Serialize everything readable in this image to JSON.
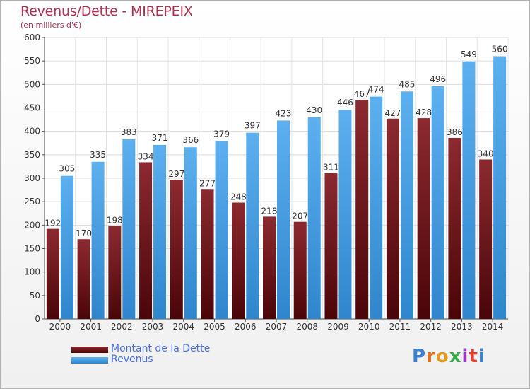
{
  "header": {
    "title": "Revenus/Dette - MIREPEIX",
    "subtitle": "(en milliers d'€)"
  },
  "colors": {
    "debt": "#6e1318",
    "revenue": "#4aa3e8",
    "title": "#b03050",
    "legend_text": "#4a6fe0"
  },
  "legend": {
    "items": [
      {
        "label": "Montant de la Dette",
        "color": "#6e1318"
      },
      {
        "label": "Revenus",
        "color": "#4aa3e8"
      }
    ]
  },
  "brand": {
    "letters": [
      "P",
      "r",
      "o",
      "x",
      "i",
      "t",
      "i"
    ],
    "colors": [
      "#3a7fd0",
      "#e07020",
      "#e09a20",
      "#3aa84a",
      "#9a3ac0",
      "#e04030",
      "#3a7fd0"
    ]
  },
  "chart_data": {
    "type": "bar",
    "title": "Revenus/Dette - MIREPEIX",
    "subtitle": "(en milliers d'€)",
    "categories": [
      "2000",
      "2001",
      "2002",
      "2003",
      "2004",
      "2005",
      "2006",
      "2007",
      "2008",
      "2009",
      "2010",
      "2011",
      "2012",
      "2013",
      "2014"
    ],
    "series": [
      {
        "name": "Montant de la Dette",
        "values": [
          192,
          170,
          198,
          334,
          297,
          277,
          248,
          218,
          207,
          311,
          467,
          427,
          428,
          386,
          340
        ]
      },
      {
        "name": "Revenus",
        "values": [
          305,
          335,
          383,
          371,
          366,
          379,
          397,
          423,
          430,
          446,
          474,
          485,
          496,
          549,
          560
        ]
      }
    ],
    "ylim": [
      0,
      600
    ],
    "yticks": [
      0,
      50,
      100,
      150,
      200,
      250,
      300,
      350,
      400,
      450,
      500,
      550,
      600
    ],
    "grid": true,
    "legend_position": "bottom-left"
  }
}
